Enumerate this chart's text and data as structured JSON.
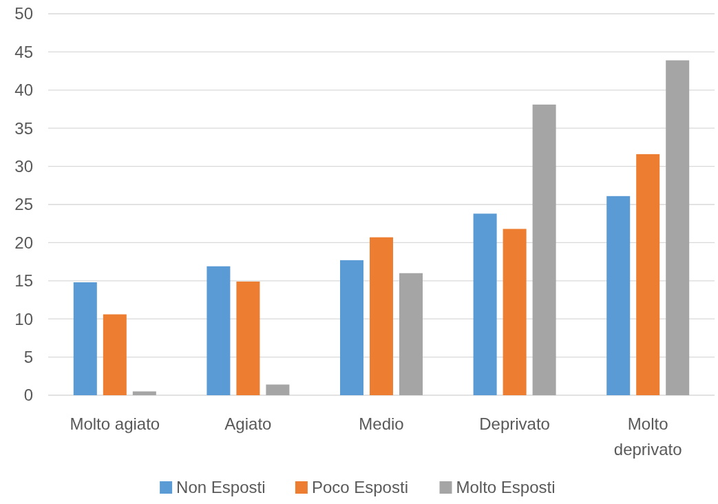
{
  "chart_data": {
    "type": "bar",
    "categories": [
      "Molto agiato",
      "Agiato",
      "Medio",
      "Deprivato",
      "Molto deprivato"
    ],
    "series": [
      {
        "name": "Non Esposti",
        "color": "#5b9bd5",
        "values": [
          14.8,
          16.9,
          17.7,
          23.8,
          26.1
        ]
      },
      {
        "name": "Poco Esposti",
        "color": "#ed7d31",
        "values": [
          10.6,
          14.9,
          20.7,
          21.8,
          31.6
        ]
      },
      {
        "name": "Molto Esposti",
        "color": "#a5a5a5",
        "values": [
          0.5,
          1.4,
          16.0,
          38.1,
          43.9
        ]
      }
    ],
    "ylim": [
      0,
      50
    ],
    "yticks": [
      0,
      5,
      10,
      15,
      20,
      25,
      30,
      35,
      40,
      45,
      50
    ],
    "grid": "y",
    "legend": "bottom"
  }
}
